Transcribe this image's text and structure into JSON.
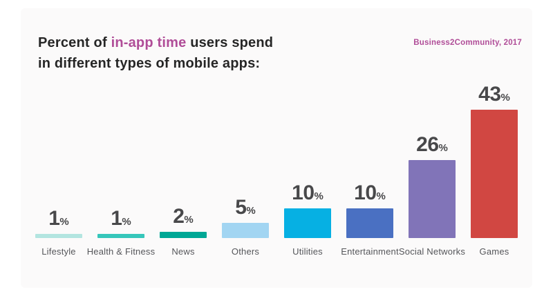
{
  "title": {
    "prefix": "Percent of ",
    "highlight": "in-app time",
    "suffix": " users spend",
    "line2": "in different types of mobile apps:"
  },
  "source": "Business2Community, 2017",
  "colors": {
    "accent": "#b04d98",
    "title_text": "#262626",
    "value_text": "#48484a",
    "label_text": "#55565a",
    "card_bg": "#fbfafa"
  },
  "chart_data": {
    "type": "bar",
    "title": "Percent of in-app time users spend in different types of mobile apps",
    "categories": [
      "Lifestyle",
      "Health & Fitness",
      "News",
      "Others",
      "Utilities",
      "Entertainment",
      "Social Networks",
      "Games"
    ],
    "values": [
      1,
      1,
      2,
      5,
      10,
      10,
      26,
      43
    ],
    "value_suffix": "%",
    "bar_colors": [
      "#b3e5e0",
      "#36c6ba",
      "#00a795",
      "#a2d5f2",
      "#06b0e3",
      "#4a70c2",
      "#8174b8",
      "#d14742"
    ],
    "xlabel": "",
    "ylabel": "",
    "ylim": [
      0,
      45
    ],
    "grid": false,
    "axes_visible": false,
    "legend": "none",
    "data_labels": "above bars"
  }
}
